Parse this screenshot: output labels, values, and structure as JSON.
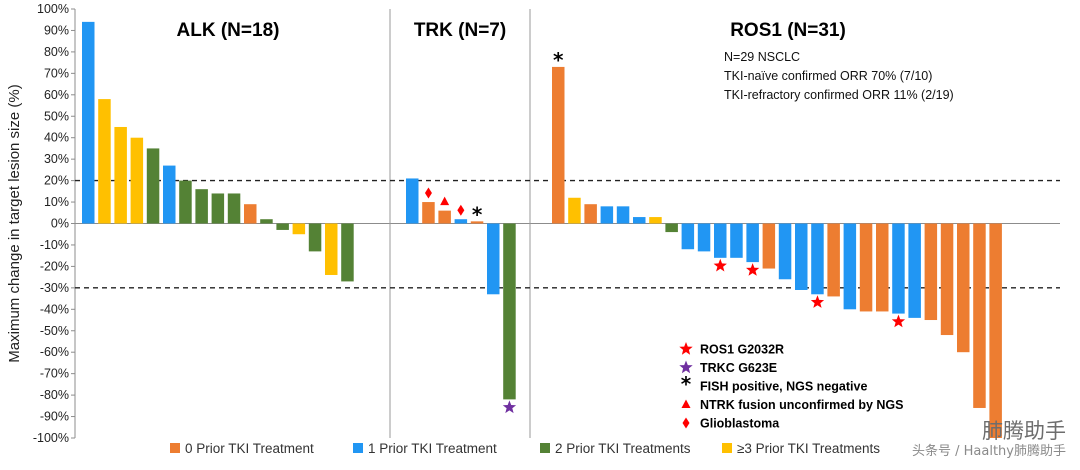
{
  "chart_data": {
    "type": "bar",
    "ylabel": "Maximum change in target lesion size (%)",
    "ylim": [
      -100,
      100
    ],
    "yticks": [
      100,
      90,
      80,
      70,
      60,
      50,
      40,
      30,
      20,
      10,
      0,
      -10,
      -20,
      -30,
      -40,
      -50,
      -60,
      -70,
      -80,
      -90,
      -100
    ],
    "reference_lines": [
      20,
      -30
    ],
    "treatment_categories": [
      {
        "key": "0",
        "label": "0 Prior TKI Treatment",
        "color": "#ED7D31"
      },
      {
        "key": "1",
        "label": "1 Prior TKI Treatment",
        "color": "#2196F3"
      },
      {
        "key": "2",
        "label": "2 Prior TKI Treatments",
        "color": "#548235"
      },
      {
        "key": "3",
        "label": "≥3 Prior TKI Treatments",
        "color": "#FFC000"
      }
    ],
    "panels": [
      {
        "title": "ALK (N=18)",
        "bars": [
          {
            "value": 94,
            "cat": "1"
          },
          {
            "value": 58,
            "cat": "3"
          },
          {
            "value": 45,
            "cat": "3"
          },
          {
            "value": 40,
            "cat": "3"
          },
          {
            "value": 35,
            "cat": "2"
          },
          {
            "value": 27,
            "cat": "1"
          },
          {
            "value": 20,
            "cat": "2"
          },
          {
            "value": 16,
            "cat": "2"
          },
          {
            "value": 14,
            "cat": "2"
          },
          {
            "value": 14,
            "cat": "2"
          },
          {
            "value": 9,
            "cat": "0"
          },
          {
            "value": 2,
            "cat": "2"
          },
          {
            "value": -3,
            "cat": "2"
          },
          {
            "value": -5,
            "cat": "3"
          },
          {
            "value": -13,
            "cat": "2"
          },
          {
            "value": -24,
            "cat": "3"
          },
          {
            "value": -27,
            "cat": "2"
          }
        ]
      },
      {
        "title": "TRK (N=7)",
        "bars": [
          {
            "value": 21,
            "cat": "1"
          },
          {
            "value": 10,
            "cat": "0",
            "marker": "diamond"
          },
          {
            "value": 6,
            "cat": "0",
            "marker": "triangle"
          },
          {
            "value": 2,
            "cat": "1",
            "marker": "diamond"
          },
          {
            "value": 1,
            "cat": "0",
            "marker": "asterisk"
          },
          {
            "value": -33,
            "cat": "1"
          },
          {
            "value": -82,
            "cat": "2",
            "marker": "purple-star"
          }
        ]
      },
      {
        "title": "ROS1 (N=31)",
        "notes": [
          "N=29 NSCLC",
          "TKI-naïve confirmed ORR 70% (7/10)",
          "TKI-refractory confirmed ORR 11% (2/19)"
        ],
        "bars": [
          {
            "value": 73,
            "cat": "0",
            "marker": "asterisk"
          },
          {
            "value": 12,
            "cat": "3"
          },
          {
            "value": 9,
            "cat": "0"
          },
          {
            "value": 8,
            "cat": "1"
          },
          {
            "value": 8,
            "cat": "1"
          },
          {
            "value": 3,
            "cat": "1"
          },
          {
            "value": 3,
            "cat": "3"
          },
          {
            "value": -4,
            "cat": "2"
          },
          {
            "value": -12,
            "cat": "1"
          },
          {
            "value": -13,
            "cat": "1"
          },
          {
            "value": -16,
            "cat": "1",
            "marker": "red-star"
          },
          {
            "value": -16,
            "cat": "1"
          },
          {
            "value": -18,
            "cat": "1",
            "marker": "red-star"
          },
          {
            "value": -21,
            "cat": "0"
          },
          {
            "value": -26,
            "cat": "1"
          },
          {
            "value": -31,
            "cat": "1"
          },
          {
            "value": -33,
            "cat": "1",
            "marker": "red-star"
          },
          {
            "value": -34,
            "cat": "0"
          },
          {
            "value": -40,
            "cat": "1"
          },
          {
            "value": -41,
            "cat": "0"
          },
          {
            "value": -41,
            "cat": "0"
          },
          {
            "value": -42,
            "cat": "1",
            "marker": "red-star"
          },
          {
            "value": -44,
            "cat": "1"
          },
          {
            "value": -45,
            "cat": "0"
          },
          {
            "value": -52,
            "cat": "0"
          },
          {
            "value": -60,
            "cat": "0"
          },
          {
            "value": -86,
            "cat": "0"
          },
          {
            "value": -100,
            "cat": "0"
          }
        ]
      }
    ],
    "marker_legend": [
      {
        "marker": "red-star",
        "label": "ROS1 G2032R",
        "color": "#FF0000"
      },
      {
        "marker": "purple-star",
        "label": "TRKC G623E",
        "color": "#7030A0"
      },
      {
        "marker": "asterisk",
        "label": "FISH positive, NGS negative",
        "color": "#000000"
      },
      {
        "marker": "triangle",
        "label": "NTRK fusion unconfirmed by NGS",
        "color": "#FF0000"
      },
      {
        "marker": "diamond",
        "label": "Glioblastoma",
        "color": "#FF0000"
      }
    ]
  },
  "watermark": {
    "line1": "肺腾助手",
    "line2": "头条号 / Haalthy肺腾助手"
  }
}
